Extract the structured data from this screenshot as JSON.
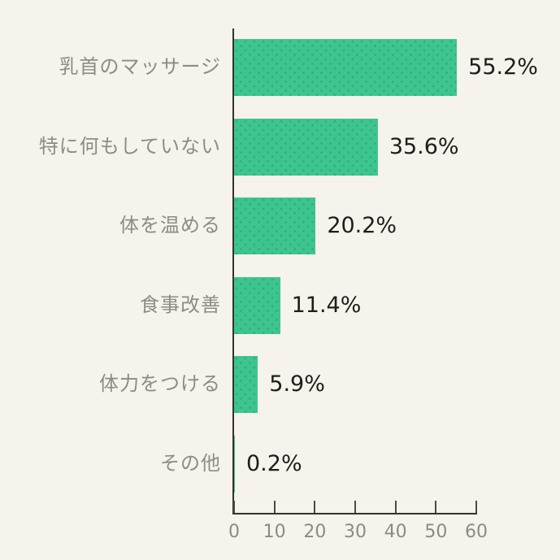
{
  "colors": {
    "background": "#f5f3ec",
    "bar_fill": "#3ec58f",
    "bar_dot": "#2eb27d",
    "axis_line": "#33332e",
    "tick_mark": "#4a4a44",
    "category_label": "#8c8c85",
    "value_label": "#1d1d1b",
    "tick_label": "#8b8b85"
  },
  "chart_data": {
    "type": "bar",
    "orientation": "horizontal",
    "title": "",
    "xlabel": "",
    "ylabel": "",
    "categories": [
      "乳首のマッサージ",
      "特に何もしていない",
      "体を温める",
      "食事改善",
      "体力をつける",
      "その他"
    ],
    "values": [
      55.2,
      35.6,
      20.2,
      11.4,
      5.9,
      0.2
    ],
    "value_labels": [
      "55.2%",
      "35.6%",
      "20.2%",
      "11.4%",
      "5.9%",
      "0.2%"
    ],
    "xlim": [
      0,
      60
    ],
    "xticks": [
      0,
      10,
      20,
      30,
      40,
      50,
      60
    ],
    "grid": false,
    "legend": null,
    "bar_pattern": "dotted"
  }
}
